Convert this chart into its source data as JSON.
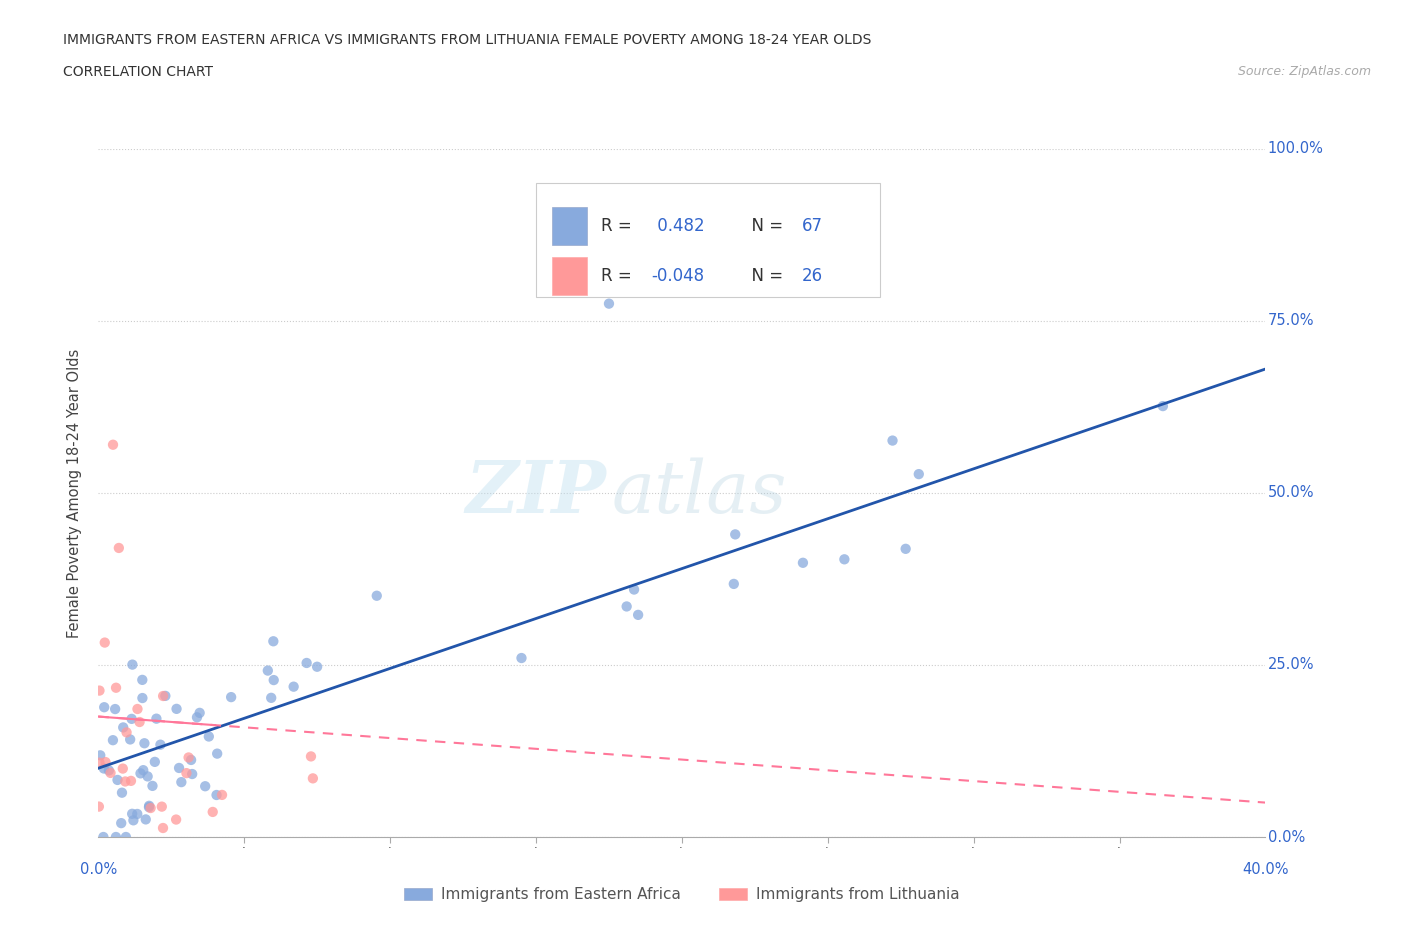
{
  "title_line1": "IMMIGRANTS FROM EASTERN AFRICA VS IMMIGRANTS FROM LITHUANIA FEMALE POVERTY AMONG 18-24 YEAR OLDS",
  "title_line2": "CORRELATION CHART",
  "source_text": "Source: ZipAtlas.com",
  "ylabel": "Female Poverty Among 18-24 Year Olds",
  "blue_color": "#88AADD",
  "pink_color": "#FF9999",
  "blue_line_color": "#2255AA",
  "pink_line_color": "#FF7799",
  "blue_r": "0.482",
  "blue_n": "67",
  "pink_r": "-0.048",
  "pink_n": "26",
  "legend_label1": "Immigrants from Eastern Africa",
  "legend_label2": "Immigrants from Lithuania",
  "watermark_zip": "ZIP",
  "watermark_atlas": "atlas",
  "ytick_labels": [
    "0.0%",
    "25.0%",
    "50.0%",
    "75.0%",
    "100.0%"
  ],
  "ytick_vals": [
    0.0,
    0.25,
    0.5,
    0.75,
    1.0
  ],
  "xlim": [
    0.0,
    0.4
  ],
  "ylim": [
    0.0,
    1.0
  ],
  "blue_trend": [
    0.0,
    0.4,
    0.1,
    0.68
  ],
  "pink_trend": [
    0.0,
    0.4,
    0.175,
    0.05
  ]
}
